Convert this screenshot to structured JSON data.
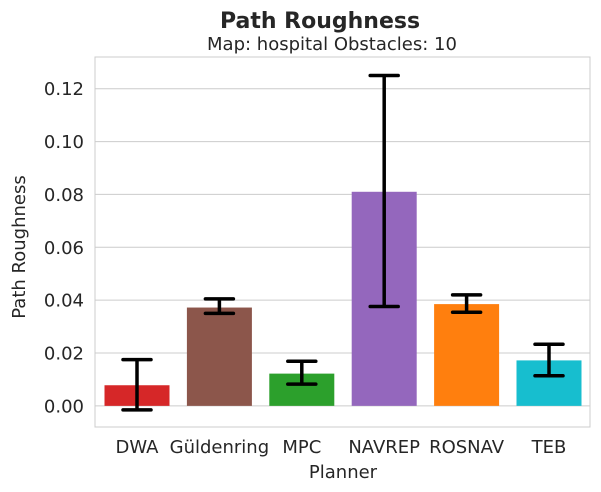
{
  "chart_data": {
    "type": "bar",
    "title": "Path Roughness",
    "subtitle": "Map: hospital Obstacles: 10",
    "xlabel": "Planner",
    "ylabel": "Path Roughness",
    "categories": [
      "DWA",
      "Güldenring",
      "MPC",
      "NAVREP",
      "ROSNAV",
      "TEB"
    ],
    "values": [
      0.0078,
      0.0372,
      0.0122,
      0.081,
      0.0385,
      0.0172
    ],
    "error_low": [
      -0.0015,
      0.035,
      0.0082,
      0.0376,
      0.0354,
      0.0114
    ],
    "error_high": [
      0.0175,
      0.0405,
      0.0169,
      0.125,
      0.042,
      0.0233
    ],
    "colors": [
      "#d62728",
      "#8c564b",
      "#2ca02c",
      "#9467bd",
      "#ff7f0e",
      "#17becf"
    ],
    "ylim": [
      -0.008,
      0.132
    ],
    "yticks": [
      "0.00",
      "0.02",
      "0.04",
      "0.06",
      "0.08",
      "0.10",
      "0.12"
    ],
    "ytick_values": [
      0,
      0.02,
      0.04,
      0.06,
      0.08,
      0.1,
      0.12
    ],
    "grid": true,
    "legend": "none"
  }
}
